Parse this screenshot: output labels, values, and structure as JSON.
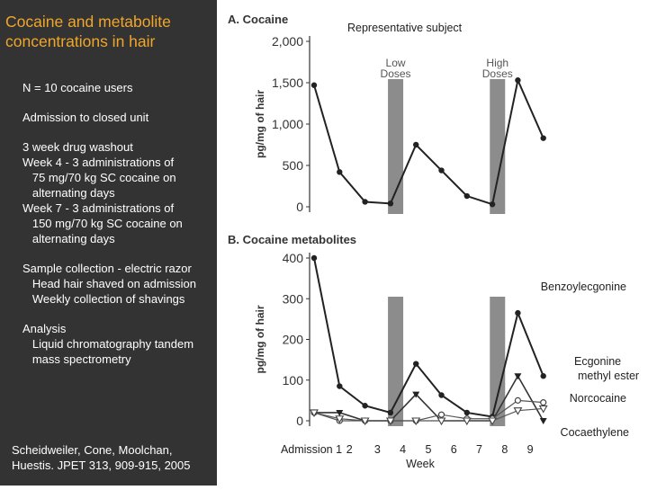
{
  "slide": {
    "title": "Cocaine and metabolite concentrations in hair",
    "n_users": "N = 10 cocaine users",
    "admission": "Admission to closed unit",
    "washout": "3 week drug washout\nWeek 4 - 3 administrations of\n   75 mg/70 kg SC cocaine on\n   alternating days\nWeek 7 - 3 administrations of\n   150 mg/70 kg SC cocaine on\n   alternating days",
    "sample_collection": "Sample collection - electric razor\n   Head hair shaved on admission\n   Weekly collection of shavings",
    "analysis": "Analysis\n   Liquid chromatography tandem\n   mass spectrometry",
    "citation": "Scheidweiler, Cone, Moolchan,\nHuestis. JPET 313, 909-915, 2005"
  },
  "chart_data": [
    {
      "type": "line",
      "title": "A. Cocaine",
      "subtitle": "Representative subject",
      "ylabel": "pg/mg of hair",
      "ylim": [
        0,
        2000
      ],
      "yticks": [
        "0",
        "500",
        "1,000",
        "1,500",
        "2,000"
      ],
      "bands": [
        {
          "label": "Low\nDoses",
          "x_from": 2.9,
          "x_to": 3.5
        },
        {
          "label": "High\nDoses",
          "x_from": 6.9,
          "x_to": 7.5
        }
      ],
      "series": [
        {
          "x": [
            0,
            1,
            2,
            3,
            4,
            5,
            6,
            7,
            8,
            9
          ],
          "values": [
            1470,
            420,
            60,
            40,
            750,
            440,
            130,
            30,
            1530,
            830
          ],
          "color": "#222222"
        }
      ]
    },
    {
      "type": "line",
      "title": "B. Cocaine metabolites",
      "ylabel": "pg/mg of hair",
      "ylim": [
        0,
        400
      ],
      "yticks": [
        "0",
        "100",
        "200",
        "300",
        "400"
      ],
      "bands": [
        {
          "x_from": 2.9,
          "x_to": 3.5
        },
        {
          "x_from": 6.9,
          "x_to": 7.5
        }
      ],
      "xlabel": "Week",
      "xticks": [
        "Admission 1",
        "2",
        "3",
        "4",
        "5",
        "6",
        "7",
        "8",
        "9"
      ],
      "series": [
        {
          "name": "Benzoylecgonine",
          "marker": "circle-filled",
          "x": [
            0,
            1,
            2,
            3,
            4,
            5,
            6,
            7,
            8,
            9
          ],
          "values": [
            400,
            85,
            37,
            20,
            140,
            63,
            20,
            10,
            265,
            110
          ]
        },
        {
          "name": "Ecgonine methyl ester",
          "marker": "triangle-down-filled",
          "x": [
            0,
            1,
            2,
            3,
            4,
            5,
            6,
            7,
            8,
            9
          ],
          "values": [
            20,
            20,
            0,
            0,
            65,
            0,
            0,
            0,
            110,
            0
          ]
        },
        {
          "name": "Norcocaine",
          "marker": "circle-open",
          "x": [
            0,
            1,
            2,
            3,
            4,
            5,
            6,
            7,
            8,
            9
          ],
          "values": [
            20,
            0,
            0,
            0,
            0,
            15,
            5,
            5,
            50,
            45
          ]
        },
        {
          "name": "Cocaethylene",
          "marker": "triangle-down-open",
          "x": [
            0,
            1,
            2,
            3,
            4,
            5,
            6,
            7,
            8,
            9
          ],
          "values": [
            20,
            5,
            0,
            0,
            0,
            0,
            0,
            0,
            25,
            30
          ]
        }
      ]
    }
  ]
}
